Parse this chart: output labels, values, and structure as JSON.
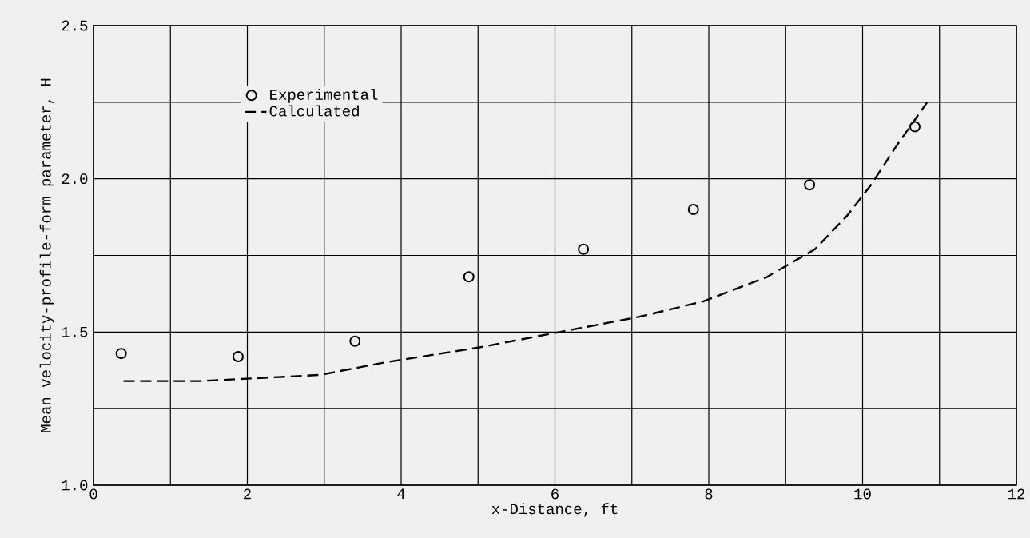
{
  "chart_data": {
    "type": "scatter",
    "xlabel": "x-Distance, ft",
    "ylabel": "Mean velocity-profile-form parameter, H",
    "xlim": [
      0,
      12
    ],
    "ylim": [
      1.0,
      2.5
    ],
    "xticks": [
      0,
      {
        "value": 1,
        "label": null
      },
      2,
      {
        "value": 3,
        "label": null
      },
      4,
      {
        "value": 5,
        "label": null
      },
      6,
      {
        "value": 7,
        "label": null
      },
      8,
      {
        "value": 9,
        "label": null
      },
      10,
      {
        "value": 11,
        "label": null
      },
      12
    ],
    "yticks": [
      {
        "value": 1.0,
        "label": "1.0"
      },
      {
        "value": 1.25,
        "label": null
      },
      {
        "value": 1.5,
        "label": "1.5"
      },
      {
        "value": 1.75,
        "label": null
      },
      {
        "value": 2.0,
        "label": "2.0"
      },
      {
        "value": 2.25,
        "label": null
      },
      {
        "value": 2.5,
        "label": "2.5"
      }
    ],
    "grid": true,
    "legend": "top left",
    "series": [
      {
        "name": "Experimental",
        "color": "#000000",
        "marker": "circle",
        "x": [
          0.36,
          1.88,
          3.4,
          4.88,
          6.37,
          7.8,
          9.31,
          10.68
        ],
        "values": [
          1.43,
          1.42,
          1.47,
          1.68,
          1.77,
          1.9,
          1.98,
          2.17
        ]
      },
      {
        "name": "Calculated",
        "type": "line",
        "color": "#000000",
        "line_style": "dashed",
        "x": [
          0.39,
          1.38,
          2.94,
          3.77,
          5.02,
          6.06,
          7.1,
          7.93,
          8.76,
          9.38,
          9.8,
          10.11,
          10.42,
          10.84
        ],
        "values": [
          1.34,
          1.34,
          1.36,
          1.4,
          1.45,
          1.5,
          1.55,
          1.6,
          1.68,
          1.77,
          1.88,
          1.98,
          2.1,
          2.25
        ]
      }
    ]
  }
}
